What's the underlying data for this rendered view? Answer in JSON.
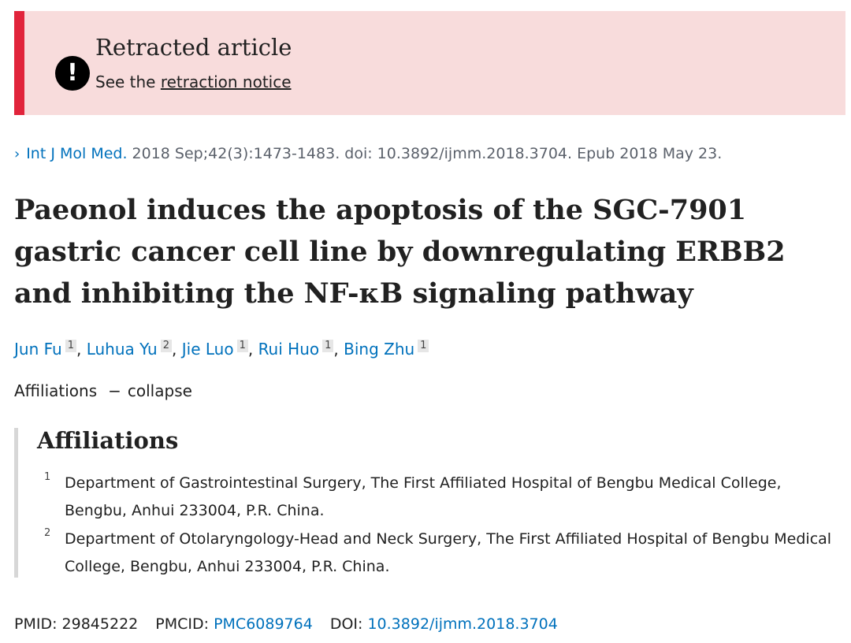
{
  "banner": {
    "icon": "exclamation-icon",
    "title": "Retracted article",
    "text_prefix": "See the ",
    "link": "retraction notice",
    "accent_color": "#e1243b",
    "background_color": "#f8dcdc"
  },
  "citation": {
    "chevron": "›",
    "journal": "Int J Mol Med.",
    "details": " 2018 Sep;42(3):1473-1483. doi: 10.3892/ijmm.2018.3704. Epub 2018 May 23."
  },
  "title": "Paeonol induces the apoptosis of the SGC-7901 gastric cancer cell line by downregulating ERBB2 and inhibiting the NF-κB signaling pathway",
  "authors": [
    {
      "name": "Jun Fu",
      "aff": "1"
    },
    {
      "name": "Luhua Yu",
      "aff": "2"
    },
    {
      "name": "Jie Luo",
      "aff": "1"
    },
    {
      "name": "Rui Huo",
      "aff": "1"
    },
    {
      "name": "Bing Zhu",
      "aff": "1"
    }
  ],
  "affiliations_toggle": {
    "label": "Affiliations",
    "dash": "−",
    "action": "collapse"
  },
  "affiliations": {
    "heading": "Affiliations",
    "items": [
      {
        "num": "1",
        "text": "Department of Gastrointestinal Surgery, The First Affiliated Hospital of Bengbu Medical College, Bengbu, Anhui 233004, P.R. China."
      },
      {
        "num": "2",
        "text": "Department of Otolaryngology-Head and Neck Surgery, The First Affiliated Hospital of Bengbu Medical College, Bengbu, Anhui 233004, P.R. China."
      }
    ]
  },
  "identifiers": {
    "pmid_label": "PMID:",
    "pmid": "29845222",
    "pmcid_label": "PMCID:",
    "pmcid": "PMC6089764",
    "doi_label": "DOI:",
    "doi": "10.3892/ijmm.2018.3704"
  },
  "link_color": "#0071bc"
}
